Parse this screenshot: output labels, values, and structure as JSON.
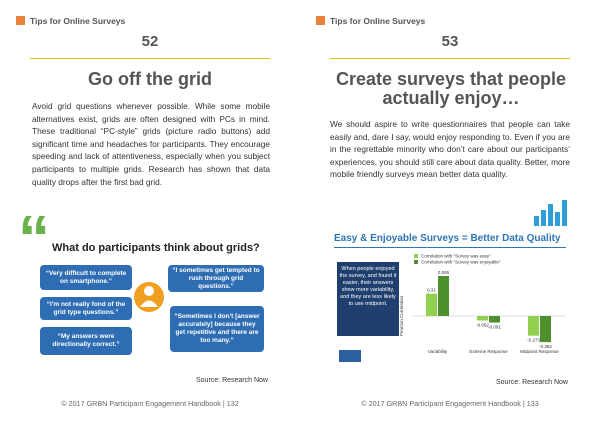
{
  "pages": [
    {
      "header": "Tips for Online Surveys",
      "number": "52",
      "title": "Go off the grid",
      "paragraph": "Avoid grid questions whenever possible. While some mobile alternatives exist, grids are often designed with PCs in mind. These traditional “PC-style” grids (picture radio buttons) add significant time and headaches for participants. They encourage speeding and lack of attentiveness, especially when you subject participants to multiple grids. Research has shown that data quality drops after the first bad grid.",
      "figure": {
        "title": "What do participants think about grids?",
        "quotes": [
          "“Very difficult to complete on smartphone.”",
          "“I sometimes get tempted to rush through grid questions.”",
          "“I'm not really fond of the grid type questions.”",
          "“Sometimes I don't [answer accurately] because they get repetitive and there are too many.”",
          "“My answers were directionally correct.”"
        ]
      },
      "source": "Source: Research Now",
      "footer": "© 2017 GRBN Participant Engagement Handbook | 132"
    },
    {
      "header": "Tips for Online Surveys",
      "number": "53",
      "title": "Create surveys that people actually enjoy…",
      "paragraph": "We should aspire to write questionnaires that people can take easily and, dare I say, would enjoy responding to. Even if you are in the regrettable minority who don’t care about our participants’ experiences, you should still care about data quality. Better, more mobile friendly surveys mean better data quality.",
      "figure": {
        "title": "Easy & Enjoyable Surveys = Better Data Quality",
        "note": "When people enjoyed the survey, and found it easier, their answers show more variability, and they are less likely to use midpoint.",
        "chart": {
          "type": "bar",
          "y_label": "Pearson Correlation",
          "categories": [
            "Variability",
            "Extreme Response",
            "Midpoint Response"
          ],
          "series": [
            {
              "name": "Correlation with \"Survey was easy\"",
              "color": "#92d050",
              "values": [
                0.31,
                -0.062,
                -0.273
              ]
            },
            {
              "name": "Correlation with \"Survey was enjoyable\"",
              "color": "#4e8f2e",
              "values": [
                0.555,
                -0.091,
                -0.362
              ]
            }
          ]
        }
      },
      "source": "Source: Research Now",
      "footer": "© 2017 GRBN Participant Engagement Handbook | 133"
    }
  ]
}
